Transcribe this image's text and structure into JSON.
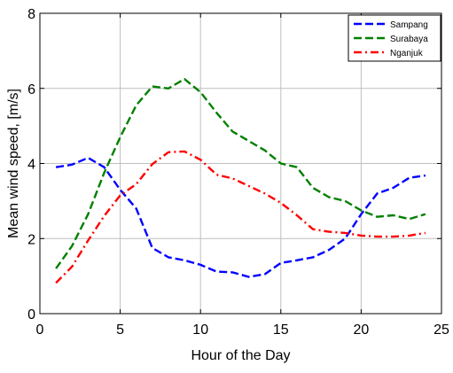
{
  "chart_data": {
    "type": "line",
    "title": "",
    "xlabel": "Hour of the Day",
    "ylabel": "Mean wind speed, [m/s]",
    "xlim": [
      0,
      25
    ],
    "ylim": [
      0,
      8
    ],
    "xticks": [
      0,
      5,
      10,
      15,
      20,
      25
    ],
    "yticks": [
      0,
      2,
      4,
      6,
      8
    ],
    "grid": true,
    "legend_position": "top-right",
    "x": [
      1,
      2,
      3,
      4,
      5,
      6,
      7,
      8,
      9,
      10,
      11,
      12,
      13,
      14,
      15,
      16,
      17,
      18,
      19,
      20,
      21,
      22,
      23,
      24
    ],
    "series": [
      {
        "name": "Sampang",
        "color": "#0000ff",
        "dash": "dashed",
        "values": [
          3.9,
          3.97,
          4.15,
          3.9,
          3.3,
          2.8,
          1.75,
          1.5,
          1.42,
          1.3,
          1.12,
          1.1,
          0.98,
          1.05,
          1.35,
          1.42,
          1.5,
          1.7,
          2.0,
          2.65,
          3.2,
          3.35,
          3.62,
          3.68
        ]
      },
      {
        "name": "Surabaya",
        "color": "#008000",
        "dash": "dashed",
        "values": [
          1.2,
          1.8,
          2.65,
          3.75,
          4.7,
          5.55,
          6.05,
          6.0,
          6.25,
          5.9,
          5.35,
          4.85,
          4.6,
          4.35,
          4.0,
          3.9,
          3.35,
          3.1,
          3.0,
          2.75,
          2.58,
          2.62,
          2.52,
          2.65
        ]
      },
      {
        "name": "Nganjuk",
        "color": "#ff0000",
        "dash": "dashdot",
        "values": [
          0.82,
          1.25,
          1.95,
          2.6,
          3.15,
          3.45,
          3.98,
          4.3,
          4.32,
          4.1,
          3.7,
          3.6,
          3.4,
          3.2,
          2.95,
          2.62,
          2.25,
          2.18,
          2.15,
          2.08,
          2.05,
          2.05,
          2.08,
          2.15
        ]
      }
    ]
  }
}
